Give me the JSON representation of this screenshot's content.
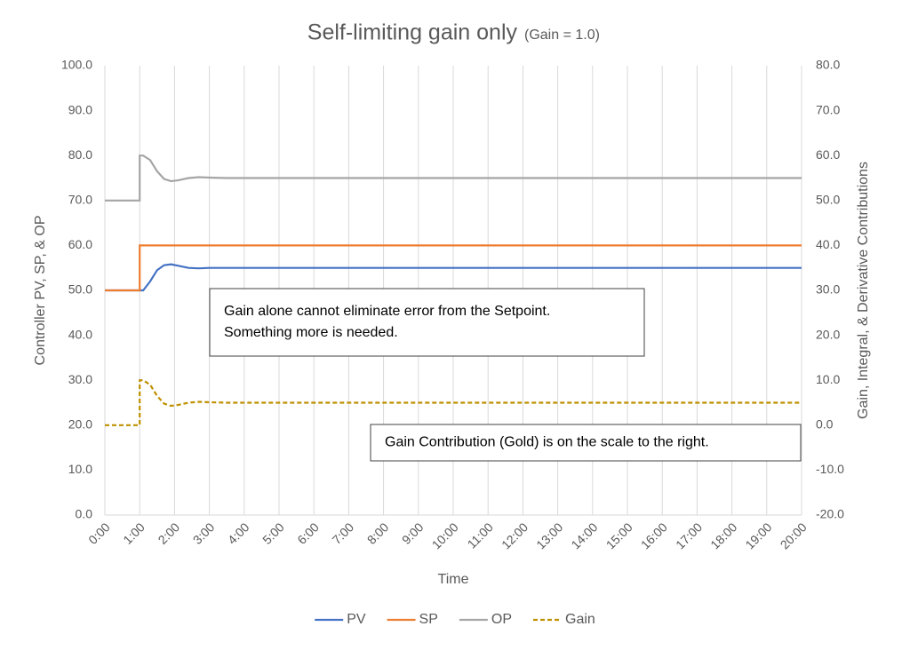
{
  "chart_data": {
    "type": "line",
    "title": "Self-limiting gain only",
    "subtitle": "(Gain = 1.0)",
    "x_label": "Time",
    "y_label": "Controller PV, SP, & OP",
    "y2_label": "Gain, Integral, & Derivative Contributions",
    "x": [
      0,
      1,
      1,
      1.1,
      1.3,
      1.5,
      1.7,
      1.9,
      2.1,
      2.4,
      2.7,
      3.0,
      3.5,
      4,
      20
    ],
    "series": [
      {
        "name": "PV",
        "color": "#4472c4",
        "values": [
          50,
          50,
          50,
          50,
          52,
          54.5,
          55.6,
          55.8,
          55.5,
          55,
          54.9,
          55,
          55,
          55,
          55
        ]
      },
      {
        "name": "SP",
        "color": "#ed7d31",
        "values": [
          50,
          50,
          60,
          60,
          60,
          60,
          60,
          60,
          60,
          60,
          60,
          60,
          60,
          60,
          60
        ]
      },
      {
        "name": "OP",
        "color": "#a5a5a5",
        "values": [
          70,
          70,
          80,
          80,
          79,
          76.5,
          74.8,
          74.3,
          74.5,
          75,
          75.2,
          75.1,
          75,
          75,
          75
        ]
      },
      {
        "name": "Gain",
        "color": "#bf9000",
        "dashed": true,
        "axis": "y2",
        "values": [
          0,
          0,
          10,
          10,
          9,
          6.5,
          4.8,
          4.3,
          4.5,
          5,
          5.2,
          5.1,
          5,
          5,
          5
        ]
      }
    ],
    "xlim": [
      0,
      20
    ],
    "xticks": [
      {
        "value": 0,
        "label": "0:00"
      },
      {
        "value": 1,
        "label": "1:00"
      },
      {
        "value": 2,
        "label": "2:00"
      },
      {
        "value": 3,
        "label": "3:00"
      },
      {
        "value": 4,
        "label": "4:00"
      },
      {
        "value": 5,
        "label": "5:00"
      },
      {
        "value": 6,
        "label": "6:00"
      },
      {
        "value": 7,
        "label": "7:00"
      },
      {
        "value": 8,
        "label": "8:00"
      },
      {
        "value": 9,
        "label": "9:00"
      },
      {
        "value": 10,
        "label": "10:00"
      },
      {
        "value": 11,
        "label": "11:00"
      },
      {
        "value": 12,
        "label": "12:00"
      },
      {
        "value": 13,
        "label": "13:00"
      },
      {
        "value": 14,
        "label": "14:00"
      },
      {
        "value": 15,
        "label": "15:00"
      },
      {
        "value": 16,
        "label": "16:00"
      },
      {
        "value": 17,
        "label": "17:00"
      },
      {
        "value": 18,
        "label": "18:00"
      },
      {
        "value": 19,
        "label": "19:00"
      },
      {
        "value": 20,
        "label": "20:00"
      }
    ],
    "ylim": [
      0,
      100
    ],
    "yticks": [
      {
        "value": 0,
        "label": "0.0"
      },
      {
        "value": 10,
        "label": "10.0"
      },
      {
        "value": 20,
        "label": "20.0"
      },
      {
        "value": 30,
        "label": "30.0"
      },
      {
        "value": 40,
        "label": "40.0"
      },
      {
        "value": 50,
        "label": "50.0"
      },
      {
        "value": 60,
        "label": "60.0"
      },
      {
        "value": 70,
        "label": "70.0"
      },
      {
        "value": 80,
        "label": "80.0"
      },
      {
        "value": 90,
        "label": "90.0"
      },
      {
        "value": 100,
        "label": "100.0"
      }
    ],
    "y2lim": [
      -20,
      80
    ],
    "y2ticks": [
      {
        "value": -20,
        "label": "-20.0"
      },
      {
        "value": -10,
        "label": "-10.0"
      },
      {
        "value": 0,
        "label": "0.0"
      },
      {
        "value": 10,
        "label": "10.0"
      },
      {
        "value": 20,
        "label": "20.0"
      },
      {
        "value": 30,
        "label": "30.0"
      },
      {
        "value": 40,
        "label": "40.0"
      },
      {
        "value": 50,
        "label": "50.0"
      },
      {
        "value": 60,
        "label": "60.0"
      },
      {
        "value": 70,
        "label": "70.0"
      },
      {
        "value": 80,
        "label": "80.0"
      }
    ],
    "grid": "x",
    "legend": "bottom",
    "annotations": [
      {
        "lines": [
          "Gain alone cannot eliminate error from the Setpoint.",
          "Something more is needed."
        ]
      },
      {
        "lines": [
          "Gain Contribution (Gold) is on the scale to the right."
        ]
      }
    ]
  }
}
